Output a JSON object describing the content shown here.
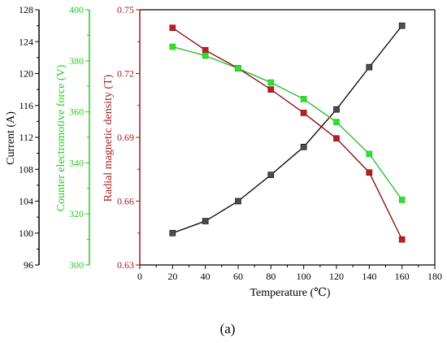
{
  "chart_data": {
    "type": "line",
    "xlabel": "Temperature (℃)",
    "xlim": [
      0,
      180
    ],
    "x_ticks": [
      "0",
      "20",
      "40",
      "60",
      "80",
      "100",
      "120",
      "140",
      "160",
      "180"
    ],
    "x": [
      20,
      40,
      60,
      80,
      100,
      120,
      140,
      160
    ],
    "axes": {
      "current": {
        "label": "Current (A)",
        "range": [
          96,
          128
        ],
        "ticks": [
          "96",
          "100",
          "104",
          "108",
          "112",
          "116",
          "120",
          "124",
          "128"
        ],
        "color": "#000000"
      },
      "emf": {
        "label": "Counter electromotive force (V)",
        "range": [
          300,
          400
        ],
        "ticks": [
          "300",
          "320",
          "340",
          "360",
          "380",
          "400"
        ],
        "color": "#22cc22"
      },
      "flux": {
        "label": "Radial magnetic density (T)",
        "range": [
          0.63,
          0.75
        ],
        "ticks": [
          "0.63",
          "0.66",
          "0.69",
          "0.72",
          "0.75"
        ],
        "color": "#9e1b1b"
      }
    },
    "series": [
      {
        "axis": "current",
        "color": "#4d4d4d",
        "line_color": "#000000",
        "values": [
          100.0,
          101.5,
          104.0,
          107.3,
          110.8,
          115.5,
          120.8,
          126.0
        ]
      },
      {
        "axis": "flux",
        "color": "#b22222",
        "line_color": "#8b0000",
        "values": [
          0.7415,
          0.731,
          0.7225,
          0.7125,
          0.7015,
          0.6895,
          0.6735,
          0.642
        ]
      },
      {
        "axis": "emf",
        "color": "#33dd33",
        "line_color": "#22bb22",
        "values": [
          385.5,
          382.0,
          377.0,
          371.5,
          365.0,
          356.0,
          343.5,
          325.5
        ]
      }
    ],
    "grid": false,
    "legend": "none"
  },
  "caption": "(a)"
}
